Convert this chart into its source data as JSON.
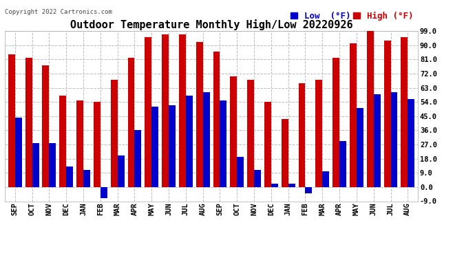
{
  "title": "Outdoor Temperature Monthly High/Low 20220926",
  "copyright": "Copyright 2022 Cartronics.com",
  "legend_low_label": "Low  (°F)",
  "legend_high_label": "High (°F)",
  "months": [
    "SEP",
    "OCT",
    "NOV",
    "DEC",
    "JAN",
    "FEB",
    "MAR",
    "APR",
    "MAY",
    "JUN",
    "JUL",
    "AUG",
    "SEP",
    "OCT",
    "NOV",
    "DEC",
    "JAN",
    "FEB",
    "MAR",
    "APR",
    "MAY",
    "JUN",
    "JUL",
    "AUG"
  ],
  "high_values": [
    84,
    82,
    77,
    58,
    55,
    54,
    68,
    82,
    95,
    97,
    97,
    92,
    86,
    70,
    68,
    54,
    43,
    66,
    68,
    82,
    91,
    99,
    93,
    95
  ],
  "low_values": [
    44,
    28,
    28,
    13,
    11,
    -7,
    20,
    36,
    51,
    52,
    58,
    60,
    55,
    19,
    11,
    2,
    2,
    -4,
    10,
    29,
    50,
    59,
    60,
    56
  ],
  "ylim": [
    -9.0,
    99.0
  ],
  "yticks": [
    -9.0,
    0.0,
    9.0,
    18.0,
    27.0,
    36.0,
    45.0,
    54.0,
    63.0,
    72.0,
    81.0,
    90.0,
    99.0
  ],
  "bar_width": 0.4,
  "high_color": "#cc0000",
  "low_color": "#0000cc",
  "grid_color": "#bbbbbb",
  "bg_color": "#ffffff",
  "title_fontsize": 11,
  "tick_fontsize": 7.5,
  "copyright_fontsize": 6.5,
  "legend_fontsize": 9
}
